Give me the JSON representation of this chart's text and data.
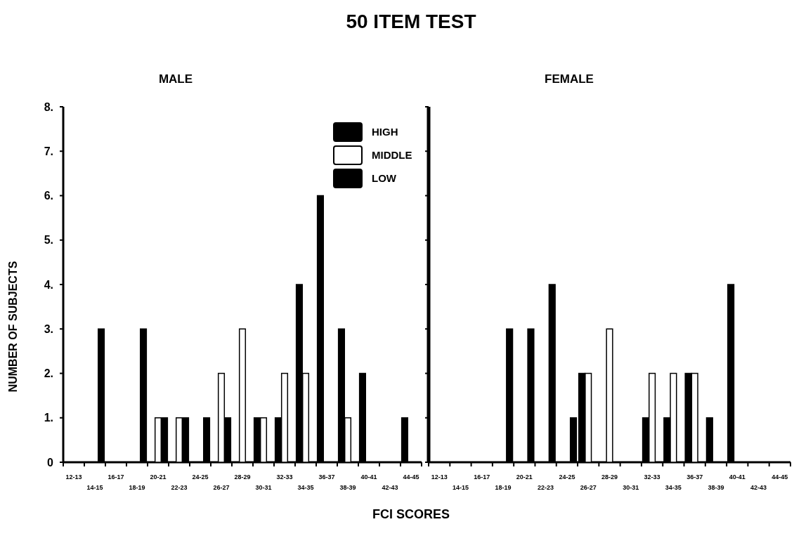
{
  "chart_data": [
    {
      "type": "bar",
      "title": "50 ITEM TEST",
      "subtitle": "MALE",
      "ylabel": "NUMBER OF SUBJECTS",
      "categories": [
        "12-13",
        "14-15",
        "16-17",
        "18-19",
        "20-21",
        "22-23",
        "24-25",
        "26-27",
        "28-29",
        "30-31",
        "32-33",
        "34-35",
        "36-37",
        "38-39",
        "40-41",
        "42-43",
        "44-45"
      ],
      "ylim": [
        0,
        8
      ],
      "yticks": [
        {
          "value": 0,
          "label": "0"
        },
        {
          "value": 1,
          "label": "1."
        },
        {
          "value": 2,
          "label": "2."
        },
        {
          "value": 3,
          "label": "3."
        },
        {
          "value": 4,
          "label": "4."
        },
        {
          "value": 5,
          "label": "5."
        },
        {
          "value": 6,
          "label": "6."
        },
        {
          "value": 7,
          "label": "7."
        },
        {
          "value": 8,
          "label": "8."
        }
      ],
      "legend": "top right",
      "series": [
        {
          "name": "HIGH",
          "color": "#000000",
          "values": [
            null,
            null,
            null,
            null,
            null,
            null,
            null,
            null,
            null,
            1,
            1,
            4,
            6,
            3,
            2,
            null,
            1
          ]
        },
        {
          "name": "MIDDLE",
          "color": "#ffffff",
          "values": [
            null,
            null,
            null,
            null,
            1,
            1,
            null,
            2,
            3,
            1,
            2,
            2,
            null,
            1,
            null,
            null,
            null
          ]
        },
        {
          "name": "LOW",
          "color": "#000000",
          "values": [
            null,
            3,
            null,
            3,
            1,
            1,
            1,
            1,
            null,
            null,
            null,
            null,
            null,
            null,
            null,
            null,
            null
          ]
        }
      ]
    },
    {
      "type": "bar",
      "subtitle": "FEMALE",
      "xlabel": "FCI SCORES",
      "categories": [
        "12-13",
        "14-15",
        "16-17",
        "18-19",
        "20-21",
        "22-23",
        "24-25",
        "26-27",
        "28-29",
        "30-31",
        "32-33",
        "34-35",
        "36-37",
        "38-39",
        "40-41",
        "42-43",
        "44-45"
      ],
      "ylim": [
        0,
        8
      ],
      "yticks": [
        0,
        1,
        2,
        3,
        4,
        5,
        6,
        7,
        8
      ],
      "tick_labels": "x",
      "series": [
        {
          "color": "#000000",
          "values": [
            null,
            null,
            null,
            null,
            null,
            null,
            null,
            2,
            null,
            null,
            1,
            1,
            2,
            1,
            4,
            null,
            null
          ]
        },
        {
          "color": "#ffffff",
          "values": [
            null,
            null,
            null,
            null,
            null,
            null,
            null,
            2,
            3,
            null,
            2,
            2,
            2,
            null,
            null,
            null,
            null
          ]
        },
        {
          "color": "#000000",
          "values": [
            null,
            null,
            null,
            3,
            3,
            4,
            1,
            null,
            null,
            null,
            null,
            null,
            null,
            null,
            null,
            null,
            null
          ]
        }
      ]
    }
  ]
}
